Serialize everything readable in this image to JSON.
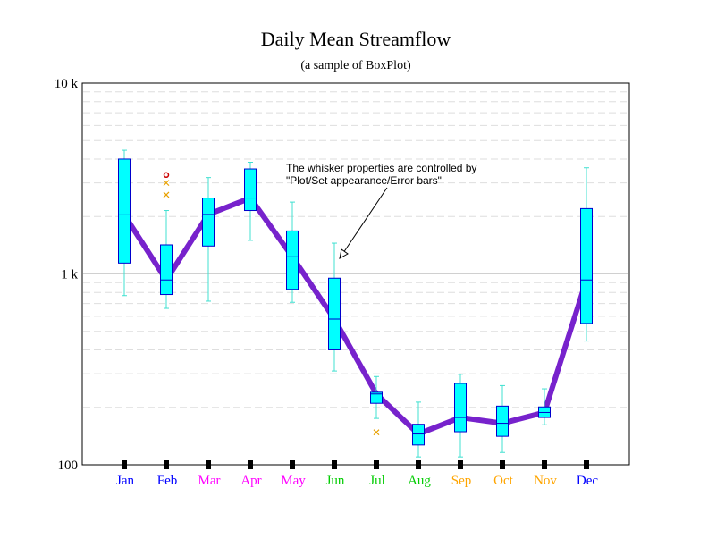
{
  "chart_data": {
    "type": "box",
    "title": "Daily Mean Streamflow",
    "subtitle": "(a sample of BoxPlot)",
    "y_scale": "log",
    "ylim": [
      100,
      10000
    ],
    "y_tick_labels": [
      {
        "value": 100,
        "label": "100"
      },
      {
        "value": 1000,
        "label": "1 k"
      },
      {
        "value": 10000,
        "label": "10 k"
      }
    ],
    "grid": "horizontal dashed minor, solid major",
    "colors": {
      "box_fill": "#00ffff",
      "box_edge": "#0000cc",
      "whisker": "#40e0d0",
      "line": "#7722cc",
      "outlier": "#e8a000",
      "outlier_far": "#cc0000"
    },
    "categories": [
      {
        "label": "Jan",
        "color": "#0000ff"
      },
      {
        "label": "Feb",
        "color": "#0000ff"
      },
      {
        "label": "Mar",
        "color": "#ff00ff"
      },
      {
        "label": "Apr",
        "color": "#ff00ff"
      },
      {
        "label": "May",
        "color": "#ff00ff"
      },
      {
        "label": "Jun",
        "color": "#00cc00"
      },
      {
        "label": "Jul",
        "color": "#00cc00"
      },
      {
        "label": "Aug",
        "color": "#00cc00"
      },
      {
        "label": "Sep",
        "color": "#ffa500"
      },
      {
        "label": "Oct",
        "color": "#ffa500"
      },
      {
        "label": "Nov",
        "color": "#ffa500"
      },
      {
        "label": "Dec",
        "color": "#0000ff"
      }
    ],
    "boxes": [
      {
        "low": 770,
        "q1": 1140,
        "median": 2040,
        "q3": 4000,
        "high": 4450,
        "outliers": []
      },
      {
        "low": 660,
        "q1": 780,
        "median": 930,
        "q3": 1420,
        "high": 2150,
        "outliers": [
          {
            "value": 2600,
            "kind": "mild"
          },
          {
            "value": 3000,
            "kind": "mild"
          },
          {
            "value": 3300,
            "kind": "far"
          }
        ]
      },
      {
        "low": 720,
        "q1": 1400,
        "median": 2050,
        "q3": 2500,
        "high": 3200,
        "outliers": []
      },
      {
        "low": 1500,
        "q1": 2150,
        "median": 2500,
        "q3": 3550,
        "high": 3850,
        "outliers": []
      },
      {
        "low": 710,
        "q1": 830,
        "median": 1230,
        "q3": 1680,
        "high": 2380,
        "outliers": []
      },
      {
        "low": 310,
        "q1": 400,
        "median": 580,
        "q3": 950,
        "high": 1450,
        "outliers": []
      },
      {
        "low": 175,
        "q1": 210,
        "median": 235,
        "q3": 240,
        "high": 290,
        "outliers": [
          {
            "value": 148,
            "kind": "mild"
          }
        ]
      },
      {
        "low": 110,
        "q1": 127,
        "median": 145,
        "q3": 163,
        "high": 213,
        "outliers": []
      },
      {
        "low": 110,
        "q1": 149,
        "median": 177,
        "q3": 267,
        "high": 298,
        "outliers": []
      },
      {
        "low": 116,
        "q1": 141,
        "median": 165,
        "q3": 203,
        "high": 260,
        "outliers": []
      },
      {
        "low": 162,
        "q1": 177,
        "median": 188,
        "q3": 201,
        "high": 250,
        "outliers": []
      },
      {
        "low": 445,
        "q1": 550,
        "median": 930,
        "q3": 2200,
        "high": 3600,
        "outliers": []
      }
    ],
    "annotation": {
      "lines": [
        "The whisker properties are controlled by",
        "\"Plot/Set appearance/Error bars\""
      ]
    }
  }
}
